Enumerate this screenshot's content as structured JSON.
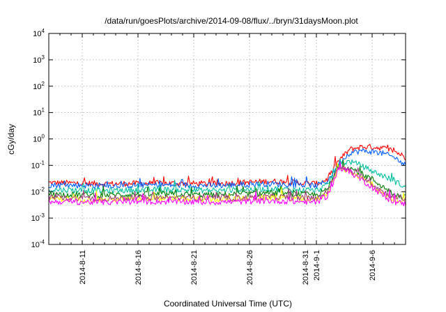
{
  "chart_data": {
    "type": "line",
    "title": "/data/run/goesPlots/archive/2014-09-08/flux/../bryn/31daysMoon.plot",
    "xlabel": "Coordinated Universal Time (UTC)",
    "ylabel": "cGy/day",
    "yscale": "log",
    "ylim": [
      0.0001,
      10000
    ],
    "xlim": [
      "2014-08-08",
      "2014-09-09"
    ],
    "grid": true,
    "x_ticks": [
      "2014-8-11",
      "2014-8-16",
      "2014-8-21",
      "2014-8-26",
      "2014-8-31",
      "2014-9-1",
      "2014-9-6"
    ],
    "y_ticks": [
      {
        "value": 0.0001,
        "base": "10",
        "exp": "-4"
      },
      {
        "value": 0.001,
        "base": "10",
        "exp": "-3"
      },
      {
        "value": 0.01,
        "base": "10",
        "exp": "-2"
      },
      {
        "value": 0.1,
        "base": "10",
        "exp": "-1"
      },
      {
        "value": 1,
        "base": "10",
        "exp": "0"
      },
      {
        "value": 10,
        "base": "10",
        "exp": "1"
      },
      {
        "value": 100,
        "base": "10",
        "exp": "2"
      },
      {
        "value": 1000,
        "base": "10",
        "exp": "3"
      },
      {
        "value": 10000,
        "base": "10",
        "exp": "4"
      }
    ],
    "series": [
      {
        "color": "#ff0000",
        "x": [
          "2014-08-08",
          "2014-08-13",
          "2014-08-18",
          "2014-08-23",
          "2014-08-28",
          "2014-09-01",
          "2014-09-02",
          "2014-09-03",
          "2014-09-04",
          "2014-09-05",
          "2014-09-06",
          "2014-09-07",
          "2014-09-08",
          "2014-09-09"
        ],
        "y": [
          0.022,
          0.02,
          0.021,
          0.02,
          0.025,
          0.02,
          0.03,
          0.15,
          0.4,
          0.5,
          0.5,
          0.45,
          0.35,
          0.2
        ]
      },
      {
        "color": "#0060ff",
        "x": [
          "2014-08-08",
          "2014-08-13",
          "2014-08-18",
          "2014-08-23",
          "2014-08-28",
          "2014-09-01",
          "2014-09-02",
          "2014-09-03",
          "2014-09-04",
          "2014-09-05",
          "2014-09-06",
          "2014-09-07",
          "2014-09-08",
          "2014-09-09"
        ],
        "y": [
          0.018,
          0.017,
          0.018,
          0.017,
          0.02,
          0.017,
          0.025,
          0.12,
          0.3,
          0.35,
          0.33,
          0.28,
          0.2,
          0.1
        ]
      },
      {
        "color": "#00c0a0",
        "x": [
          "2014-08-08",
          "2014-08-13",
          "2014-08-18",
          "2014-08-23",
          "2014-08-28",
          "2014-09-01",
          "2014-09-02",
          "2014-09-03",
          "2014-09-04",
          "2014-09-05",
          "2014-09-06",
          "2014-09-07",
          "2014-09-08",
          "2014-09-09"
        ],
        "y": [
          0.012,
          0.011,
          0.012,
          0.011,
          0.013,
          0.011,
          0.018,
          0.11,
          0.14,
          0.1,
          0.06,
          0.04,
          0.025,
          0.015
        ]
      },
      {
        "color": "#008000",
        "x": [
          "2014-08-08",
          "2014-08-13",
          "2014-08-18",
          "2014-08-23",
          "2014-08-28",
          "2014-09-01",
          "2014-09-02",
          "2014-09-03",
          "2014-09-04",
          "2014-09-05",
          "2014-09-06",
          "2014-09-07",
          "2014-09-08",
          "2014-09-09"
        ],
        "y": [
          0.008,
          0.0075,
          0.008,
          0.0075,
          0.009,
          0.0075,
          0.012,
          0.09,
          0.08,
          0.05,
          0.03,
          0.015,
          0.008,
          0.006
        ]
      },
      {
        "color": "#ffff00",
        "x": [
          "2014-08-08",
          "2014-08-13",
          "2014-08-18",
          "2014-08-23",
          "2014-08-28",
          "2014-09-01",
          "2014-09-02",
          "2014-09-03",
          "2014-09-04",
          "2014-09-05",
          "2014-09-06",
          "2014-09-07",
          "2014-09-08",
          "2014-09-09"
        ],
        "y": [
          0.0055,
          0.005,
          0.0055,
          0.005,
          0.006,
          0.005,
          0.009,
          0.08,
          0.06,
          0.035,
          0.018,
          0.008,
          0.005,
          0.005
        ]
      },
      {
        "color": "#a04080",
        "x": [
          "2014-08-08",
          "2014-08-13",
          "2014-08-18",
          "2014-08-23",
          "2014-08-28",
          "2014-09-01",
          "2014-09-02",
          "2014-09-03",
          "2014-09-04",
          "2014-09-05",
          "2014-09-06",
          "2014-09-07",
          "2014-09-08",
          "2014-09-09"
        ],
        "y": [
          0.006,
          0.0055,
          0.006,
          0.0055,
          0.0065,
          0.0055,
          0.01,
          0.085,
          0.065,
          0.04,
          0.02,
          0.01,
          0.006,
          0.0055
        ]
      },
      {
        "color": "#ff00ff",
        "x": [
          "2014-08-08",
          "2014-08-13",
          "2014-08-18",
          "2014-08-23",
          "2014-08-28",
          "2014-09-01",
          "2014-09-02",
          "2014-09-03",
          "2014-09-04",
          "2014-09-05",
          "2014-09-06",
          "2014-09-07",
          "2014-09-08",
          "2014-09-09"
        ],
        "y": [
          0.0042,
          0.004,
          0.0042,
          0.004,
          0.0045,
          0.004,
          0.007,
          0.075,
          0.055,
          0.03,
          0.015,
          0.007,
          0.004,
          0.0035
        ]
      }
    ]
  }
}
